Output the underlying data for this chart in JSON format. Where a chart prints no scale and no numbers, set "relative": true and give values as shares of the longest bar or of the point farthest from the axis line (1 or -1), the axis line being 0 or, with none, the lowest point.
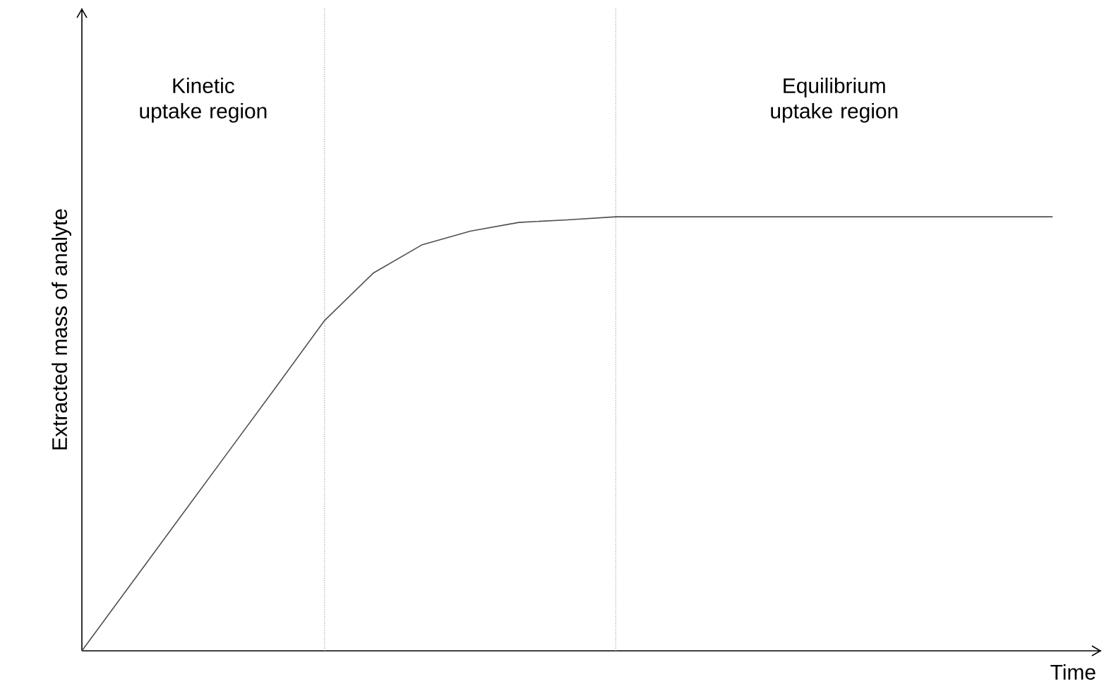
{
  "chart_data": {
    "type": "line",
    "relative": true,
    "xlabel": "Time",
    "ylabel": "Extracted mass of analyte",
    "categories": [
      null,
      null,
      null,
      null,
      null,
      null,
      null,
      null,
      null,
      null,
      null,
      null,
      null,
      null,
      null,
      null,
      null,
      null,
      null,
      null,
      null
    ],
    "series": [
      {
        "color": "#505050",
        "values": [
          0,
          0.152,
          0.304,
          0.456,
          0.608,
          0.761,
          0.87,
          0.935,
          0.967,
          0.987,
          0.993,
          1,
          1,
          1,
          1,
          1,
          1,
          1,
          1,
          1,
          1
        ]
      }
    ],
    "annotations": [
      "Kinetic uptake region",
      "Equilibrium uptake region"
    ],
    "marker": "none",
    "line_style": "solid"
  }
}
